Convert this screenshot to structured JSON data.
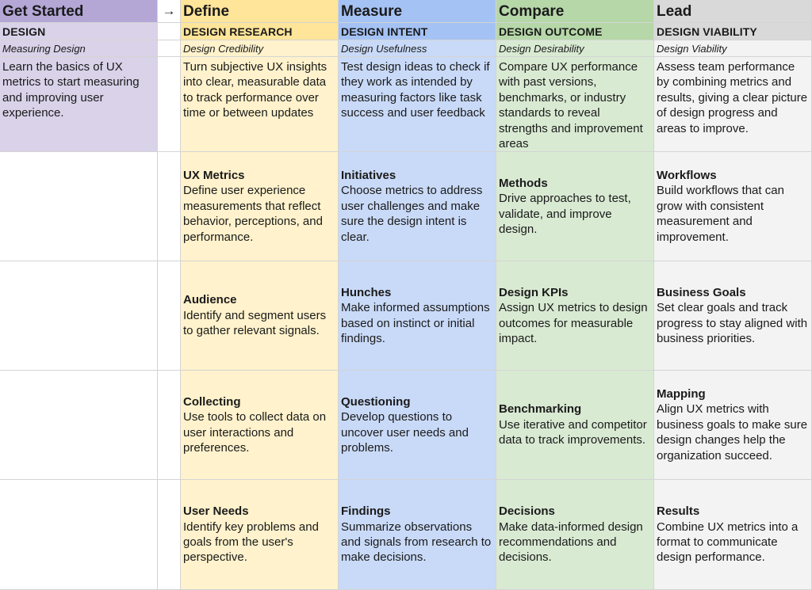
{
  "arrow": "→",
  "get_started": {
    "title": "Get Started",
    "subtitle": "DESIGN",
    "tag": "Measuring Design",
    "description": "Learn the basics of UX metrics to start measuring and improving user experience."
  },
  "columns": [
    {
      "title": "Define",
      "subtitle": "DESIGN RESEARCH",
      "tag": "Design Credibility",
      "description": "Turn subjective UX insights into clear, measurable data to track performance over time or between updates",
      "items": [
        {
          "heading": "UX Metrics",
          "text": "Define user experience measurements that reflect behavior, perceptions, and performance."
        },
        {
          "heading": "Audience",
          "text": "Identify and segment users to gather relevant signals."
        },
        {
          "heading": "Collecting",
          "text": "Use tools to collect data on user interactions and preferences."
        },
        {
          "heading": "User Needs",
          "text": "Identify key problems and goals from the user's perspective."
        }
      ]
    },
    {
      "title": "Measure",
      "subtitle": "DESIGN INTENT",
      "tag": "Design Usefulness",
      "description": "Test design ideas to check if they work as intended by measuring factors like task success and user feedback",
      "items": [
        {
          "heading": "Initiatives",
          "text": "Choose metrics to address user challenges and make sure the design intent is clear."
        },
        {
          "heading": "Hunches",
          "text": "Make informed assumptions based on instinct or initial findings."
        },
        {
          "heading": "Questioning",
          "text": "Develop questions to uncover user needs and problems."
        },
        {
          "heading": "Findings",
          "text": "Summarize observations and signals from research to make decisions."
        }
      ]
    },
    {
      "title": "Compare",
      "subtitle": "DESIGN OUTCOME",
      "tag": "Design Desirability",
      "description": "Compare UX performance with past versions, benchmarks, or industry standards to reveal strengths and improvement areas",
      "items": [
        {
          "heading": "Methods",
          "text": "Drive approaches to test, validate, and improve design."
        },
        {
          "heading": "Design KPIs",
          "text": "Assign UX metrics to design outcomes for measurable impact."
        },
        {
          "heading": "Benchmarking",
          "text": "Use iterative and competitor data to track improvements."
        },
        {
          "heading": "Decisions",
          "text": "Make data-informed design recommendations and decisions."
        }
      ]
    },
    {
      "title": "Lead",
      "subtitle": "DESIGN VIABILITY",
      "tag": "Design Viability",
      "description": "Assess team performance by combining metrics and results, giving a clear picture of design progress and areas to improve.",
      "items": [
        {
          "heading": "Workflows",
          "text": "Build workflows that can grow with consistent measurement and improvement."
        },
        {
          "heading": "Business Goals",
          "text": "Set clear goals and track progress to stay aligned with business priorities."
        },
        {
          "heading": "Mapping",
          "text": "Align UX metrics with business goals to make sure design changes help the organization succeed."
        },
        {
          "heading": "Results",
          "text": "Combine UX metrics into a format to communicate design performance."
        }
      ]
    }
  ]
}
